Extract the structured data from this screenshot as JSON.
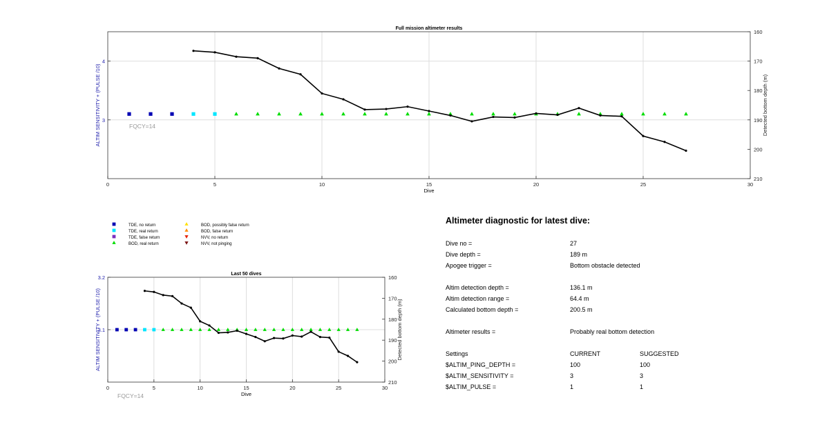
{
  "colors": {
    "tde_no_return": "#0000b3",
    "tde_real_return": "#00e6ff",
    "tde_false_return": "#7b2fbe",
    "bod_real_return": "#00dd00",
    "bod_possibly_false": "#ffe000",
    "bod_false_return": "#ff8c00",
    "nvv_no_return": "#e62000",
    "nvv_not_pinging": "#7a1010",
    "depth_line": "#000000",
    "left_axis_label": "#1a1aaa",
    "fqcy_text": "#999999"
  },
  "legend": [
    {
      "label": "TDE, no return",
      "marker": "square",
      "color_key": "tde_no_return"
    },
    {
      "label": "TDE, real return",
      "marker": "square",
      "color_key": "tde_real_return"
    },
    {
      "label": "TDE, false return",
      "marker": "square",
      "color_key": "tde_false_return"
    },
    {
      "label": "BOD, real return",
      "marker": "triangle-up",
      "color_key": "bod_real_return"
    },
    {
      "label": "BOD, possibly false return",
      "marker": "triangle-up",
      "color_key": "bod_possibly_false"
    },
    {
      "label": "BOD, false return",
      "marker": "triangle-up",
      "color_key": "bod_false_return"
    },
    {
      "label": "NVV, no return",
      "marker": "triangle-down",
      "color_key": "nvv_no_return"
    },
    {
      "label": "NVV, not pinging",
      "marker": "triangle-down",
      "color_key": "nvv_not_pinging"
    }
  ],
  "chart_data": [
    {
      "type": "scatter",
      "title": "Full mission altimeter results",
      "xlabel": "Dive",
      "ylabel": "ALTIM SENSITIVITY + (PULSE /10)",
      "y2label": "Detected bottom depth (m)",
      "annotation": "FQCY=14",
      "xlim": [
        0,
        30
      ],
      "ylim": [
        2,
        4.5
      ],
      "y2lim": [
        210,
        160
      ],
      "xticks": [
        0,
        5,
        10,
        15,
        20,
        25,
        30
      ],
      "yticks": [
        3,
        4
      ],
      "y2ticks": [
        160,
        170,
        180,
        190,
        200,
        210
      ],
      "grid": true,
      "marker_series": [
        {
          "x": [
            1,
            2,
            3
          ],
          "y": [
            3.1,
            3.1,
            3.1
          ],
          "marker": "square",
          "color_key": "tde_no_return"
        },
        {
          "x": [
            4,
            5
          ],
          "y": [
            3.1,
            3.1
          ],
          "marker": "square",
          "color_key": "tde_real_return"
        },
        {
          "x": [
            6,
            7,
            8,
            9,
            10,
            11,
            12,
            13,
            14,
            15,
            16,
            17,
            18,
            19,
            20,
            21,
            22,
            23,
            24,
            25,
            26,
            27
          ],
          "y": [
            3.1,
            3.1,
            3.1,
            3.1,
            3.1,
            3.1,
            3.1,
            3.1,
            3.1,
            3.1,
            3.1,
            3.1,
            3.1,
            3.1,
            3.1,
            3.1,
            3.1,
            3.1,
            3.1,
            3.1,
            3.1,
            3.1
          ],
          "marker": "triangle-up",
          "color_key": "bod_real_return"
        }
      ],
      "depth_series": {
        "x": [
          4,
          5,
          6,
          7,
          8,
          9,
          10,
          11,
          12,
          13,
          14,
          15,
          16,
          17,
          18,
          19,
          20,
          21,
          22,
          23,
          24,
          25,
          26,
          27
        ],
        "y": [
          166.5,
          167,
          168.5,
          169,
          172.5,
          174.5,
          181,
          183,
          186.5,
          186.3,
          185.5,
          187,
          188.5,
          190.5,
          189,
          189.2,
          187.8,
          188.3,
          186,
          188.5,
          188.8,
          195.5,
          197.5,
          200.5
        ]
      }
    },
    {
      "type": "scatter",
      "title": "Last 50 dives",
      "xlabel": "Dive",
      "ylabel": "ALTIM SENSITIVITY + (PULSE /10)",
      "y2label": "Detected bottom depth (m)",
      "annotation": "FQCY=14",
      "xlim": [
        0,
        30
      ],
      "ylim": [
        3.0,
        3.2
      ],
      "y2lim": [
        210,
        160
      ],
      "xticks": [
        0,
        5,
        10,
        15,
        20,
        25,
        30
      ],
      "yticks": [
        3.1,
        3.2
      ],
      "y2ticks": [
        160,
        170,
        180,
        190,
        200,
        210
      ],
      "grid": true,
      "marker_series": [
        {
          "x": [
            1,
            2,
            3
          ],
          "y": [
            3.1,
            3.1,
            3.1
          ],
          "marker": "square",
          "color_key": "tde_no_return"
        },
        {
          "x": [
            4,
            5
          ],
          "y": [
            3.1,
            3.1
          ],
          "marker": "square",
          "color_key": "tde_real_return"
        },
        {
          "x": [
            6,
            7,
            8,
            9,
            10,
            11,
            12,
            13,
            14,
            15,
            16,
            17,
            18,
            19,
            20,
            21,
            22,
            23,
            24,
            25,
            26,
            27
          ],
          "y": [
            3.1,
            3.1,
            3.1,
            3.1,
            3.1,
            3.1,
            3.1,
            3.1,
            3.1,
            3.1,
            3.1,
            3.1,
            3.1,
            3.1,
            3.1,
            3.1,
            3.1,
            3.1,
            3.1,
            3.1,
            3.1,
            3.1
          ],
          "marker": "triangle-up",
          "color_key": "bod_real_return"
        }
      ],
      "depth_series": {
        "x": [
          4,
          5,
          6,
          7,
          8,
          9,
          10,
          11,
          12,
          13,
          14,
          15,
          16,
          17,
          18,
          19,
          20,
          21,
          22,
          23,
          24,
          25,
          26,
          27
        ],
        "y": [
          166.5,
          167,
          168.5,
          169,
          172.5,
          174.5,
          181,
          183,
          186.5,
          186.3,
          185.5,
          187,
          188.5,
          190.5,
          189,
          189.2,
          187.8,
          188.3,
          186,
          188.5,
          188.8,
          195.5,
          197.5,
          200.5
        ]
      }
    }
  ],
  "diagnostic": {
    "title": "Altimeter diagnostic for latest dive:",
    "rows": [
      {
        "label": "Dive no =",
        "value": "27"
      },
      {
        "label": "Dive depth =",
        "value": "189 m"
      },
      {
        "label": "Apogee trigger =",
        "value": "Bottom obstacle detected"
      },
      {
        "label": "Altim detection depth =",
        "value": "136.1 m"
      },
      {
        "label": "Altim detection range =",
        "value": "64.4 m"
      },
      {
        "label": "Calculated bottom depth =",
        "value": "200.5 m"
      },
      {
        "label": "Altimeter results =",
        "value": "Probably real bottom detection"
      }
    ],
    "settings_header": {
      "label": "Settings",
      "current": "CURRENT",
      "suggested": "SUGGESTED"
    },
    "settings": [
      {
        "label": "$ALTIM_PING_DEPTH =",
        "current": "100",
        "suggested": "100"
      },
      {
        "label": "$ALTIM_SENSITIVITY =",
        "current": "3",
        "suggested": "3"
      },
      {
        "label": "$ALTIM_PULSE =",
        "current": "1",
        "suggested": "1"
      }
    ]
  }
}
